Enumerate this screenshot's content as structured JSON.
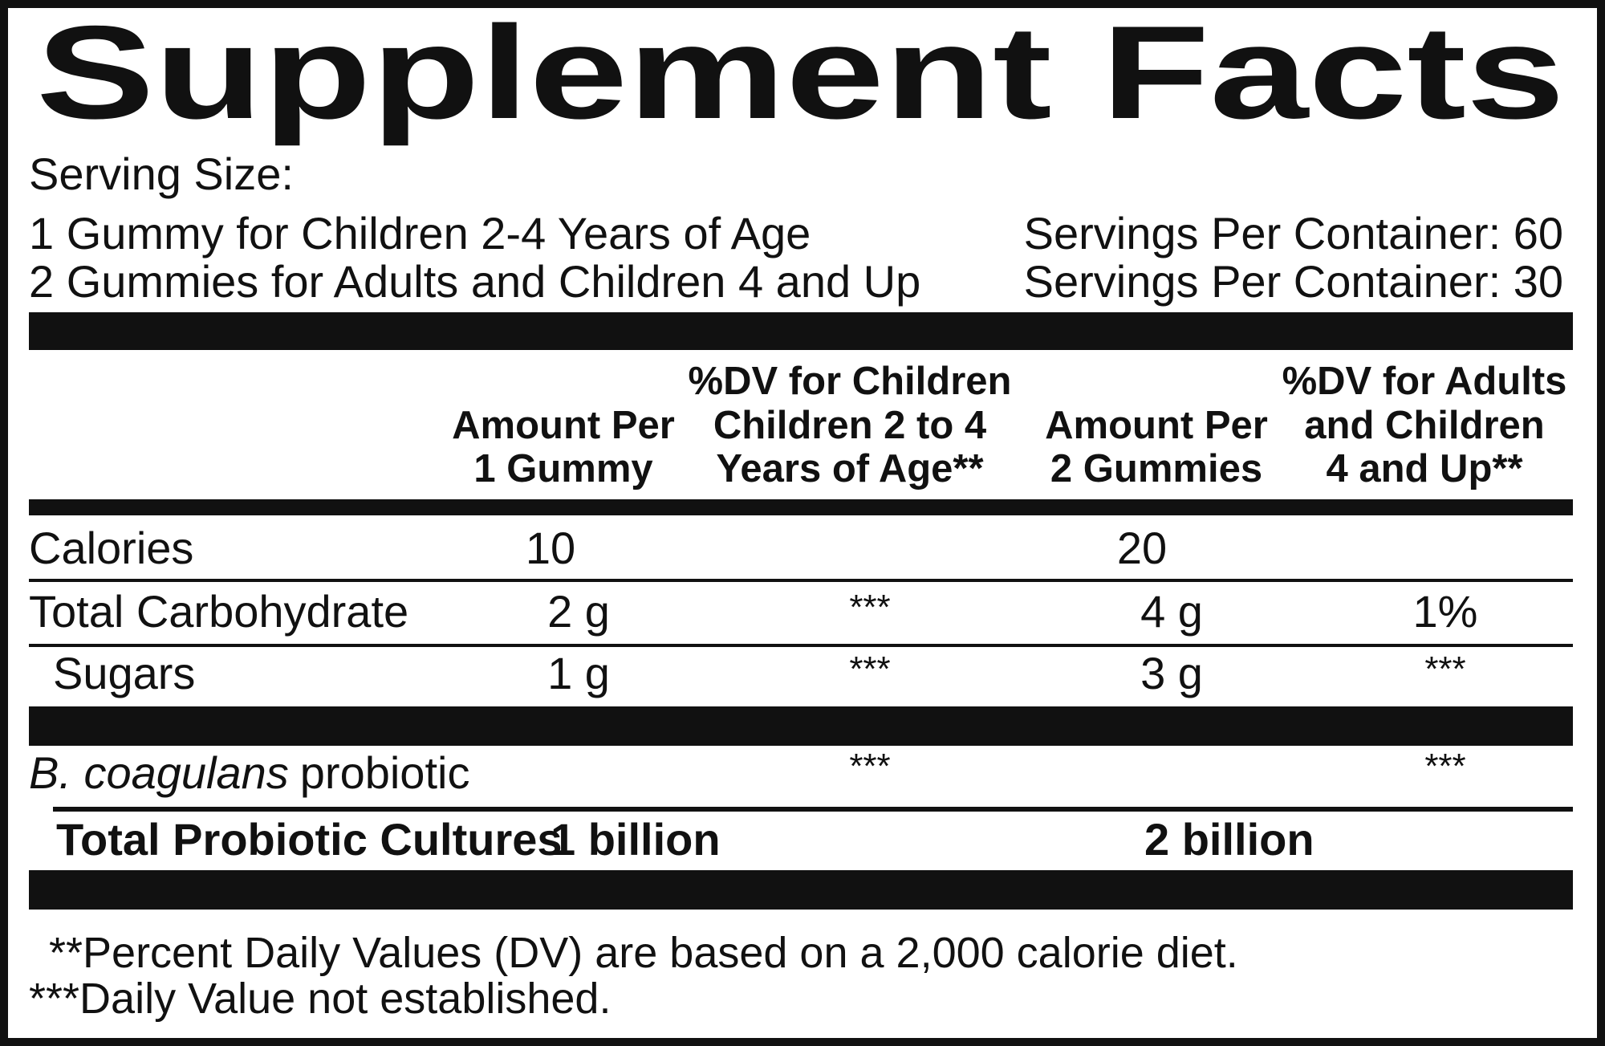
{
  "title": "Supplement Facts",
  "serving_size": {
    "label": "Serving Size:",
    "lines": [
      {
        "text": "1 Gummy for Children 2-4 Years of Age",
        "servings": "Servings Per Container: 60"
      },
      {
        "text": "2 Gummies for Adults and Children 4 and Up",
        "servings": "Servings Per Container: 30"
      }
    ]
  },
  "table": {
    "columns": [
      [
        "Amount Per",
        "1 Gummy"
      ],
      [
        "%DV for Children",
        "Children 2 to 4",
        "Years of Age**"
      ],
      [
        "Amount Per",
        "2 Gummies"
      ],
      [
        "%DV for Adults",
        "and Children",
        "4 and Up**"
      ]
    ],
    "rows": [
      {
        "name": "Calories",
        "amount_1": "10",
        "amount_2": "20"
      },
      {
        "name": "Total Carbohydrate",
        "amount_1": "2 g",
        "dv_1": "***",
        "amount_2": "4 g",
        "dv_2": "1%"
      },
      {
        "name": "Sugars",
        "amount_1": "1 g",
        "dv_1": "***",
        "amount_2": "3 g",
        "dv_2": "***"
      },
      {
        "name_italic": "B. coagulans",
        "name": "probiotic",
        "dv_1": "***",
        "dv_2": "***"
      },
      {
        "name": "Total Probiotic Cultures",
        "amount_1": "1 billion",
        "amount_2": "2 billion"
      }
    ]
  },
  "footnotes": [
    "**Percent Daily Values (DV) are based on a 2,000 calorie diet.",
    "***Daily Value not established."
  ]
}
